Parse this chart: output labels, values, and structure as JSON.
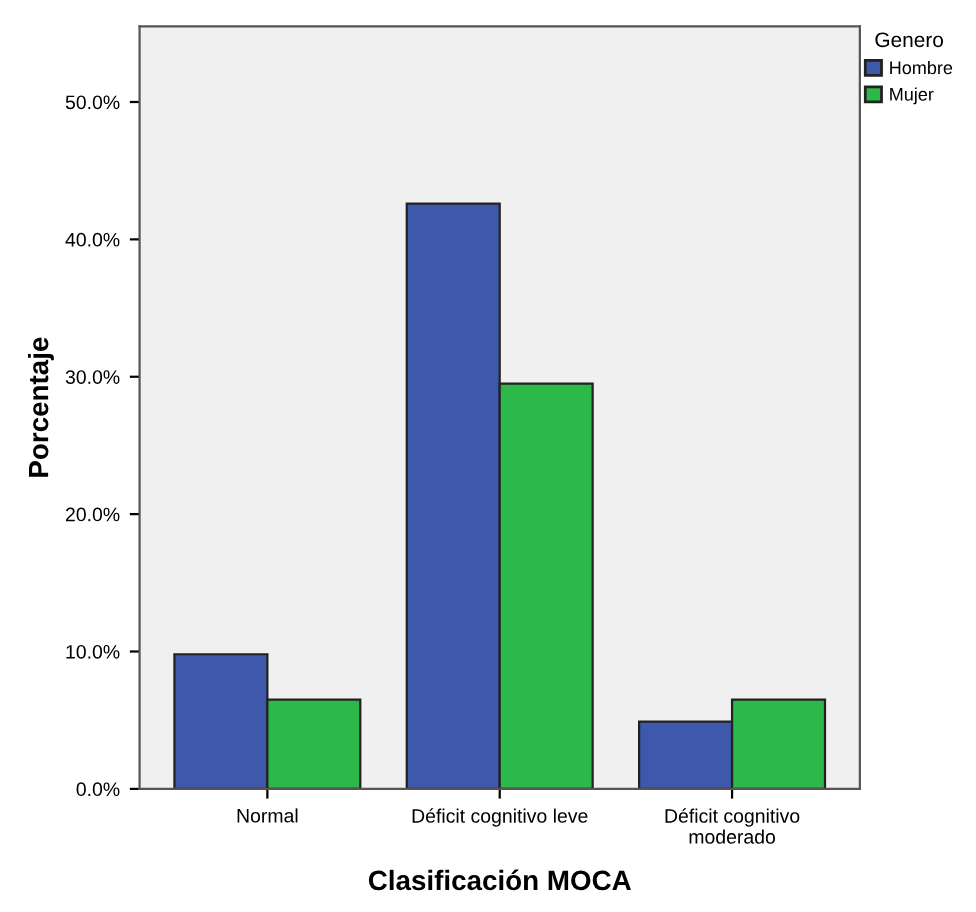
{
  "chart_data": {
    "type": "bar",
    "xlabel": "Clasificación MOCA",
    "ylabel": "Porcentaje",
    "legend_title": "Genero",
    "categories": [
      "Normal",
      "Déficit cognitivo leve",
      "Déficit cognitivo\nmoderado"
    ],
    "series": [
      {
        "name": "Hombre",
        "color": "#3e58ac",
        "values": [
          9.8,
          42.6,
          4.9
        ]
      },
      {
        "name": "Mujer",
        "color": "#2db84a",
        "values": [
          6.5,
          29.5,
          6.5
        ]
      }
    ],
    "ylim": [
      0,
      55.5
    ],
    "yticks": [
      {
        "value": 0,
        "label": "0.0%"
      },
      {
        "value": 10,
        "label": "10.0%"
      },
      {
        "value": 20,
        "label": "20.0%"
      },
      {
        "value": 30,
        "label": "30.0%"
      },
      {
        "value": 40,
        "label": "40.0%"
      },
      {
        "value": 50,
        "label": "50.0%"
      }
    ],
    "grid": false,
    "legend": "top right"
  }
}
